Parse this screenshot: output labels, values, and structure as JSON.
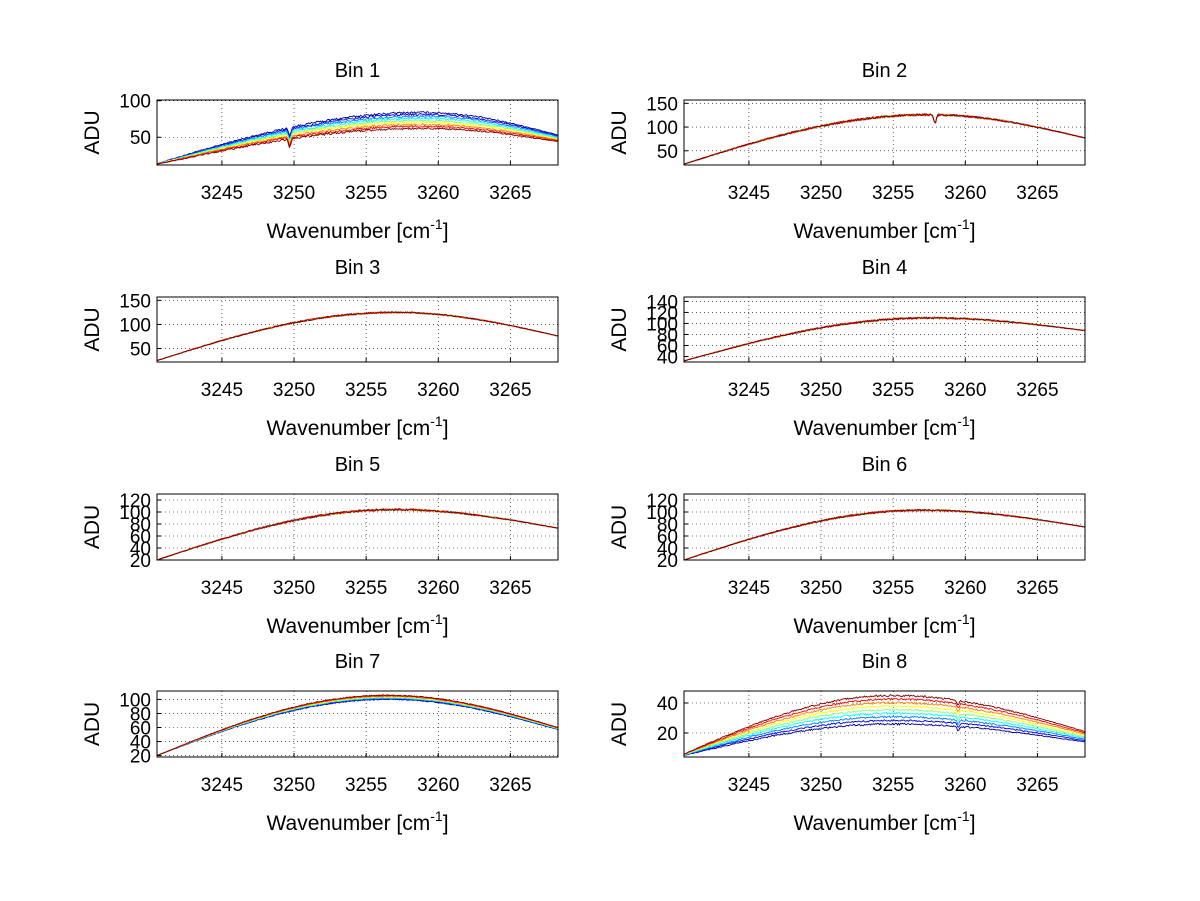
{
  "figure": {
    "background": "#ffffff",
    "grid": "dotted",
    "series_colors": [
      "#00008f",
      "#0000ff",
      "#0080ff",
      "#00ffff",
      "#80ff80",
      "#ffff00",
      "#ff8000",
      "#ff0000",
      "#800000"
    ]
  },
  "chart_data": [
    {
      "type": "line",
      "title": "Bin 1",
      "xlabel": "Wavenumber [cm",
      "xlabel_sup": "-1",
      "xlabel_end": "]",
      "ylabel": "ADU",
      "xlim": [
        3240.5,
        3268.3
      ],
      "ylim": [
        12,
        101
      ],
      "xticks": [
        3245,
        3250,
        3255,
        3260,
        3265
      ],
      "yticks": [
        50,
        100
      ],
      "n_series": 9,
      "amp_first": 84,
      "amp_last": 62,
      "base_first": 14,
      "base_last": 13,
      "end_first": 53,
      "end_last": 44,
      "peak_x": 3259,
      "dip_x": 3249.7,
      "dip_depth": 11,
      "noise": 1.4
    },
    {
      "type": "line",
      "title": "Bin 2",
      "xlabel": "Wavenumber [cm",
      "xlabel_sup": "-1",
      "xlabel_end": "]",
      "ylabel": "ADU",
      "xlim": [
        3240.5,
        3268.3
      ],
      "ylim": [
        20,
        157
      ],
      "xticks": [
        3245,
        3250,
        3255,
        3260,
        3265
      ],
      "yticks": [
        50,
        100,
        150
      ],
      "n_series": 9,
      "amp_first": 126,
      "amp_last": 126,
      "base_first": 22,
      "base_last": 22,
      "end_first": 77,
      "end_last": 77,
      "peak_x": 3257.5,
      "dip_x": 3257.9,
      "dip_depth": 18,
      "noise": 2.2
    },
    {
      "type": "line",
      "title": "Bin 3",
      "xlabel": "Wavenumber [cm",
      "xlabel_sup": "-1",
      "xlabel_end": "]",
      "ylabel": "ADU",
      "xlim": [
        3240.5,
        3268.3
      ],
      "ylim": [
        22,
        157
      ],
      "xticks": [
        3245,
        3250,
        3255,
        3260,
        3265
      ],
      "yticks": [
        50,
        100,
        150
      ],
      "n_series": 9,
      "amp_first": 125,
      "amp_last": 125,
      "base_first": 25,
      "base_last": 25,
      "end_first": 76,
      "end_last": 76,
      "peak_x": 3257,
      "dip_x": 3257,
      "dip_depth": 0,
      "noise": 1.6
    },
    {
      "type": "line",
      "title": "Bin 4",
      "xlabel": "Wavenumber [cm",
      "xlabel_sup": "-1",
      "xlabel_end": "]",
      "ylabel": "ADU",
      "xlim": [
        3240.5,
        3268.3
      ],
      "ylim": [
        30,
        148
      ],
      "xticks": [
        3245,
        3250,
        3255,
        3260,
        3265
      ],
      "yticks": [
        40,
        60,
        80,
        100,
        120,
        140
      ],
      "n_series": 9,
      "amp_first": 110,
      "amp_last": 110,
      "base_first": 32,
      "base_last": 32,
      "end_first": 87,
      "end_last": 87,
      "peak_x": 3257.5,
      "dip_x": 3257.5,
      "dip_depth": 0,
      "noise": 1.6
    },
    {
      "type": "line",
      "title": "Bin 5",
      "xlabel": "Wavenumber [cm",
      "xlabel_sup": "-1",
      "xlabel_end": "]",
      "ylabel": "ADU",
      "xlim": [
        3240.5,
        3268.3
      ],
      "ylim": [
        20,
        130
      ],
      "xticks": [
        3245,
        3250,
        3255,
        3260,
        3265
      ],
      "yticks": [
        20,
        40,
        60,
        80,
        100,
        120
      ],
      "n_series": 9,
      "amp_first": 104,
      "amp_last": 104,
      "base_first": 20,
      "base_last": 20,
      "end_first": 73,
      "end_last": 73,
      "peak_x": 3257,
      "dip_x": 3257,
      "dip_depth": 0,
      "noise": 1.6
    },
    {
      "type": "line",
      "title": "Bin 6",
      "xlabel": "Wavenumber [cm",
      "xlabel_sup": "-1",
      "xlabel_end": "]",
      "ylabel": "ADU",
      "xlim": [
        3240.5,
        3268.3
      ],
      "ylim": [
        20,
        130
      ],
      "xticks": [
        3245,
        3250,
        3255,
        3260,
        3265
      ],
      "yticks": [
        20,
        40,
        60,
        80,
        100,
        120
      ],
      "n_series": 9,
      "amp_first": 103,
      "amp_last": 103,
      "base_first": 20,
      "base_last": 20,
      "end_first": 75,
      "end_last": 75,
      "peak_x": 3257,
      "dip_x": 3257,
      "dip_depth": 0,
      "noise": 1.4
    },
    {
      "type": "line",
      "title": "Bin 7",
      "xlabel": "Wavenumber [cm",
      "xlabel_sup": "-1",
      "xlabel_end": "]",
      "ylabel": "ADU",
      "xlim": [
        3240.5,
        3268.3
      ],
      "ylim": [
        18,
        112
      ],
      "xticks": [
        3245,
        3250,
        3255,
        3260,
        3265
      ],
      "yticks": [
        20,
        40,
        60,
        80,
        100
      ],
      "n_series": 9,
      "amp_first": 100,
      "amp_last": 106,
      "base_first": 20,
      "base_last": 20,
      "end_first": 57,
      "end_last": 60,
      "peak_x": 3256.5,
      "dip_x": 3256.5,
      "dip_depth": 0,
      "noise": 0.7
    },
    {
      "type": "line",
      "title": "Bin 8",
      "xlabel": "Wavenumber [cm",
      "xlabel_sup": "-1",
      "xlabel_end": "]",
      "ylabel": "ADU",
      "xlim": [
        3240.5,
        3268.3
      ],
      "ylim": [
        4,
        48
      ],
      "xticks": [
        3245,
        3250,
        3255,
        3260,
        3265
      ],
      "yticks": [
        20,
        40
      ],
      "n_series": 9,
      "amp_first": 26,
      "amp_last": 45,
      "base_first": 5,
      "base_last": 6,
      "end_first": 14,
      "end_last": 21,
      "peak_x": 3255,
      "dip_x": 3259.5,
      "dip_depth": 2.5,
      "noise": 0.6
    }
  ]
}
